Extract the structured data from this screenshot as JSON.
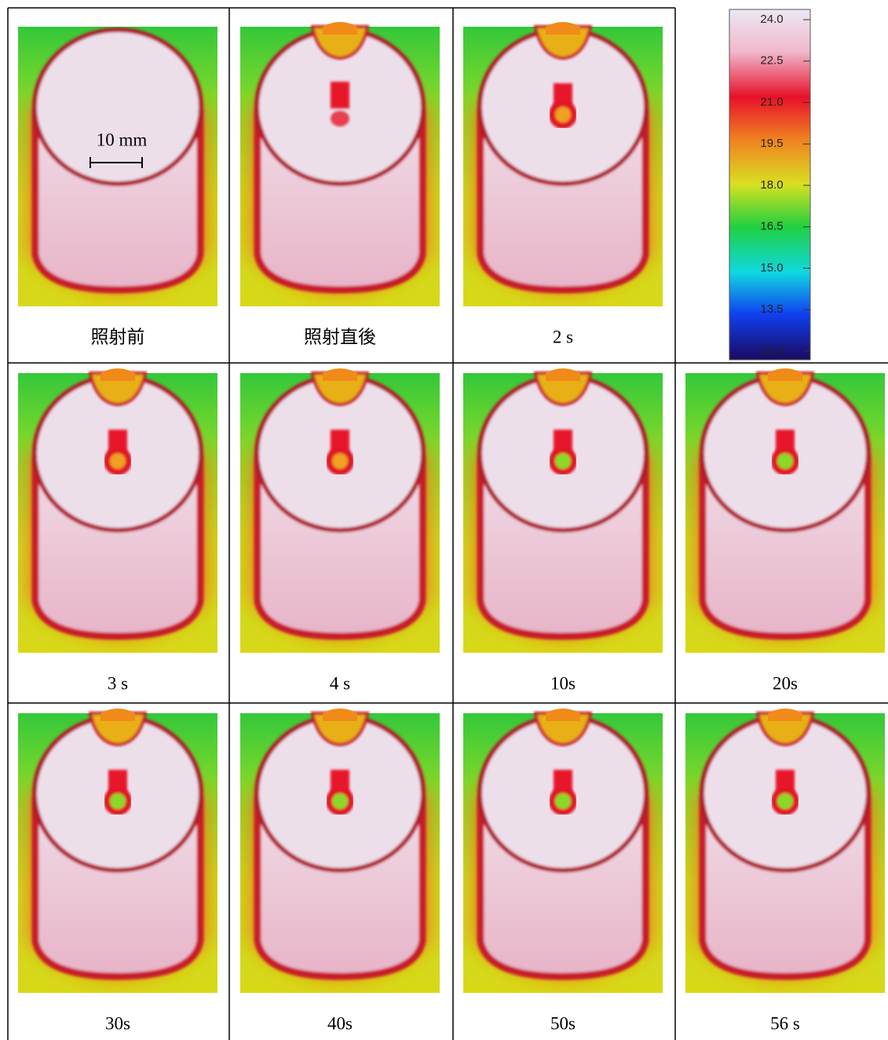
{
  "scale_bar": "10 mm",
  "colorbar": {
    "ticks": [
      {
        "value": 24,
        "label": "24.0"
      },
      {
        "value": 22.5,
        "label": "22.5"
      },
      {
        "value": 21,
        "label": "21.0"
      },
      {
        "value": 19.5,
        "label": "19.5"
      },
      {
        "value": 18,
        "label": "18.0"
      },
      {
        "value": 16.5,
        "label": "16.5"
      },
      {
        "value": 15,
        "label": "15.0"
      },
      {
        "value": 13.5,
        "label": "13.5"
      },
      {
        "value": 12,
        "label": "12.0"
      }
    ]
  },
  "cells": [
    {
      "caption": "照射前"
    },
    {
      "caption": "照射直後"
    },
    {
      "caption": "2 s"
    },
    {
      "caption": "3 s"
    },
    {
      "caption": "4 s"
    },
    {
      "caption": "10s"
    },
    {
      "caption": "20s"
    },
    {
      "caption": "30s"
    },
    {
      "caption": "40s"
    },
    {
      "caption": "50s"
    },
    {
      "caption": "56 s"
    }
  ]
}
